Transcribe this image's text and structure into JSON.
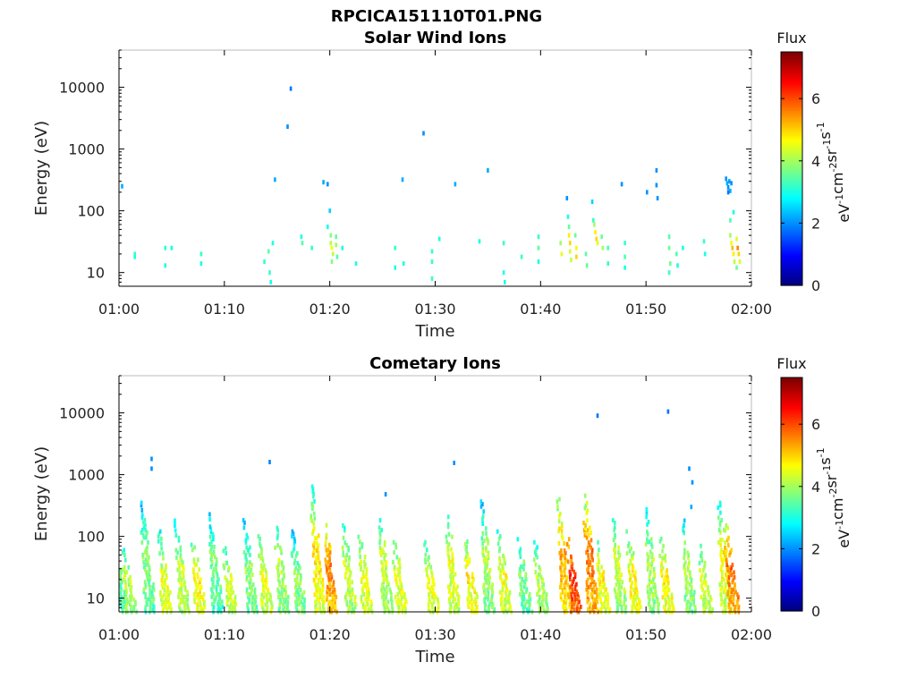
{
  "figure": {
    "title": "RPCICA151110T01.PNG"
  },
  "chart_data": [
    {
      "type": "heatmap",
      "title": "Solar Wind Ions",
      "xlabel": "Time",
      "ylabel": "Energy (eV)",
      "x_ticks": [
        "01:00",
        "01:10",
        "01:20",
        "01:30",
        "01:40",
        "01:50",
        "02:00"
      ],
      "x_range_minutes": [
        0,
        60
      ],
      "y_scale": "log",
      "y_ticks": [
        10,
        100,
        1000,
        10000
      ],
      "y_tick_labels": [
        "10",
        "100",
        "1000",
        "10000"
      ],
      "ylim": [
        6,
        40000
      ],
      "colorbar": {
        "label": "Flux",
        "unit_parts": [
          "eV",
          "-1",
          "cm",
          "-2",
          "sr",
          "-1",
          "s",
          "-1"
        ],
        "range": [
          0,
          7.5
        ],
        "ticks": [
          0,
          2,
          4,
          6
        ],
        "colormap": "jet"
      },
      "cells": [
        [
          0.3,
          250,
          2.2
        ],
        [
          1.5,
          20,
          3.2
        ],
        [
          1.5,
          18,
          3.0
        ],
        [
          4.4,
          25,
          3.1
        ],
        [
          4.4,
          13,
          3.0
        ],
        [
          5.0,
          25,
          3.0
        ],
        [
          7.8,
          20,
          3.2
        ],
        [
          7.8,
          14,
          3.0
        ],
        [
          13.8,
          15,
          3.2
        ],
        [
          14.2,
          22,
          3.5
        ],
        [
          14.3,
          10,
          3.2
        ],
        [
          14.4,
          7,
          3.0
        ],
        [
          14.6,
          30,
          3.0
        ],
        [
          14.8,
          320,
          2.2
        ],
        [
          16.0,
          2300,
          2.0
        ],
        [
          16.3,
          9500,
          1.8
        ],
        [
          17.3,
          38,
          3.0
        ],
        [
          17.4,
          30,
          3.4
        ],
        [
          18.3,
          25,
          3.2
        ],
        [
          19.4,
          290,
          2.2
        ],
        [
          19.8,
          270,
          2.0
        ],
        [
          19.8,
          55,
          3.0
        ],
        [
          20.0,
          100,
          2.5
        ],
        [
          20.1,
          40,
          3.8
        ],
        [
          20.1,
          30,
          4.2
        ],
        [
          20.2,
          25,
          4.6
        ],
        [
          20.3,
          20,
          4.2
        ],
        [
          20.2,
          15,
          3.8
        ],
        [
          20.6,
          38,
          3.5
        ],
        [
          20.6,
          28,
          4.0
        ],
        [
          20.7,
          18,
          3.4
        ],
        [
          21.2,
          25,
          3.0
        ],
        [
          22.5,
          14,
          3.0
        ],
        [
          26.2,
          25,
          3.2
        ],
        [
          26.2,
          12,
          3.0
        ],
        [
          26.9,
          320,
          2.2
        ],
        [
          27.0,
          14,
          3.0
        ],
        [
          28.9,
          1800,
          2.0
        ],
        [
          29.7,
          22,
          3.2
        ],
        [
          29.7,
          15,
          3.2
        ],
        [
          29.7,
          8,
          3.2
        ],
        [
          30.4,
          35,
          3.0
        ],
        [
          31.9,
          270,
          2.2
        ],
        [
          34.2,
          32,
          3.0
        ],
        [
          35.0,
          450,
          2.2
        ],
        [
          36.5,
          30,
          3.2
        ],
        [
          36.5,
          10,
          3.0
        ],
        [
          36.6,
          7,
          3.0
        ],
        [
          38.2,
          18,
          3.2
        ],
        [
          39.8,
          38,
          3.2
        ],
        [
          39.8,
          25,
          3.5
        ],
        [
          39.8,
          15,
          3.0
        ],
        [
          41.9,
          30,
          4.0
        ],
        [
          42.0,
          20,
          4.5
        ],
        [
          42.5,
          160,
          2.0
        ],
        [
          42.6,
          80,
          3.0
        ],
        [
          42.7,
          55,
          3.5
        ],
        [
          42.7,
          40,
          4.8
        ],
        [
          42.8,
          30,
          5.0
        ],
        [
          42.8,
          22,
          4.4
        ],
        [
          42.9,
          16,
          4.2
        ],
        [
          43.3,
          40,
          3.6
        ],
        [
          43.4,
          25,
          4.6
        ],
        [
          43.4,
          18,
          5.0
        ],
        [
          44.3,
          20,
          3.5
        ],
        [
          44.4,
          13,
          3.5
        ],
        [
          44.9,
          140,
          2.5
        ],
        [
          45.0,
          70,
          3.2
        ],
        [
          45.1,
          60,
          4.0
        ],
        [
          45.2,
          45,
          4.8
        ],
        [
          45.3,
          35,
          5.0
        ],
        [
          45.4,
          30,
          4.5
        ],
        [
          45.8,
          38,
          3.6
        ],
        [
          45.9,
          25,
          4.0
        ],
        [
          46.4,
          25,
          3.4
        ],
        [
          46.4,
          14,
          3.2
        ],
        [
          47.7,
          270,
          2.0
        ],
        [
          48.0,
          30,
          3.2
        ],
        [
          48.0,
          18,
          3.4
        ],
        [
          48.0,
          12,
          3.0
        ],
        [
          50.1,
          200,
          2.0
        ],
        [
          51.0,
          450,
          2.0
        ],
        [
          51.0,
          260,
          2.0
        ],
        [
          51.1,
          160,
          2.0
        ],
        [
          52.2,
          38,
          3.4
        ],
        [
          52.2,
          25,
          3.6
        ],
        [
          52.3,
          14,
          3.6
        ],
        [
          52.2,
          10,
          3.2
        ],
        [
          52.9,
          20,
          3.4
        ],
        [
          53.0,
          13,
          3.0
        ],
        [
          53.5,
          25,
          3.0
        ],
        [
          55.5,
          32,
          3.2
        ],
        [
          55.6,
          20,
          3.0
        ],
        [
          57.6,
          330,
          2.0
        ],
        [
          57.7,
          280,
          2.2
        ],
        [
          57.8,
          240,
          2.0
        ],
        [
          57.9,
          300,
          2.1
        ],
        [
          58.0,
          210,
          2.2
        ],
        [
          58.1,
          280,
          2.0
        ],
        [
          57.8,
          200,
          1.8
        ],
        [
          58.0,
          70,
          3.4
        ],
        [
          58.3,
          95,
          3.0
        ],
        [
          58.0,
          40,
          4.0
        ],
        [
          58.1,
          30,
          4.6
        ],
        [
          58.2,
          25,
          5.2
        ],
        [
          58.3,
          20,
          4.8
        ],
        [
          58.4,
          15,
          4.2
        ],
        [
          58.6,
          35,
          4.4
        ],
        [
          58.7,
          25,
          5.6
        ],
        [
          58.8,
          20,
          5.0
        ],
        [
          58.9,
          15,
          4.4
        ],
        [
          58.6,
          12,
          3.6
        ]
      ]
    },
    {
      "type": "heatmap",
      "title": "Cometary Ions",
      "xlabel": "Time",
      "ylabel": "Energy (eV)",
      "x_ticks": [
        "01:00",
        "01:10",
        "01:20",
        "01:30",
        "01:40",
        "01:50",
        "02:00"
      ],
      "x_range_minutes": [
        0,
        60
      ],
      "y_scale": "log",
      "y_ticks": [
        10,
        100,
        1000,
        10000
      ],
      "y_tick_labels": [
        "10",
        "100",
        "1000",
        "10000"
      ],
      "ylim": [
        6,
        40000
      ],
      "colorbar": {
        "label": "Flux",
        "unit_parts": [
          "eV",
          "-1",
          "cm",
          "-2",
          "sr",
          "-1",
          "s",
          "-1"
        ],
        "range": [
          0,
          7.5
        ],
        "ticks": [
          0,
          2,
          4,
          6
        ],
        "colormap": "jet"
      },
      "bursts": [
        [
          0.3,
          150,
          50,
          3.8
        ],
        [
          1.2,
          60,
          20,
          4.2
        ],
        [
          3.0,
          350,
          60,
          4.0
        ],
        [
          4.6,
          120,
          22,
          4.6
        ],
        [
          6.2,
          180,
          30,
          4.4
        ],
        [
          7.8,
          80,
          20,
          4.8
        ],
        [
          9.4,
          250,
          50,
          3.8
        ],
        [
          10.8,
          70,
          20,
          4.4
        ],
        [
          12.7,
          200,
          30,
          4.0
        ],
        [
          14.1,
          100,
          25,
          4.6
        ],
        [
          15.7,
          180,
          40,
          4.2
        ],
        [
          17.3,
          120,
          25,
          4.0
        ],
        [
          19.1,
          700,
          70,
          5.0
        ],
        [
          20.3,
          200,
          35,
          5.6
        ],
        [
          22.1,
          150,
          35,
          4.4
        ],
        [
          23.6,
          130,
          25,
          4.6
        ],
        [
          25.5,
          200,
          45,
          4.4
        ],
        [
          26.9,
          80,
          22,
          4.6
        ],
        [
          29.9,
          80,
          20,
          4.6
        ],
        [
          31.9,
          250,
          40,
          4.6
        ],
        [
          33.7,
          90,
          25,
          4.8
        ],
        [
          35.2,
          400,
          55,
          4.2
        ],
        [
          36.8,
          120,
          25,
          4.6
        ],
        [
          38.7,
          90,
          30,
          3.8
        ],
        [
          40.3,
          80,
          22,
          4.2
        ],
        [
          42.5,
          400,
          60,
          5.4
        ],
        [
          43.4,
          90,
          25,
          6.2
        ],
        [
          45.0,
          500,
          55,
          5.8
        ],
        [
          46.2,
          80,
          22,
          4.8
        ],
        [
          47.7,
          200,
          45,
          4.4
        ],
        [
          49.1,
          120,
          25,
          4.8
        ],
        [
          50.8,
          300,
          45,
          4.2
        ],
        [
          52.2,
          100,
          25,
          4.8
        ],
        [
          54.3,
          180,
          40,
          4.2
        ],
        [
          55.9,
          70,
          20,
          4.4
        ],
        [
          57.7,
          350,
          55,
          4.8
        ],
        [
          58.4,
          150,
          30,
          5.8
        ]
      ],
      "dots": [
        [
          3.1,
          1800,
          2.0
        ],
        [
          3.1,
          1250,
          2.0
        ],
        [
          14.3,
          1600,
          1.9
        ],
        [
          25.3,
          480,
          2.0
        ],
        [
          31.8,
          1550,
          2.0
        ],
        [
          45.4,
          9000,
          1.8
        ],
        [
          52.1,
          10500,
          1.8
        ],
        [
          54.1,
          1250,
          2.0
        ],
        [
          54.4,
          750,
          2.0
        ],
        [
          54.3,
          300,
          2.2
        ]
      ]
    }
  ]
}
